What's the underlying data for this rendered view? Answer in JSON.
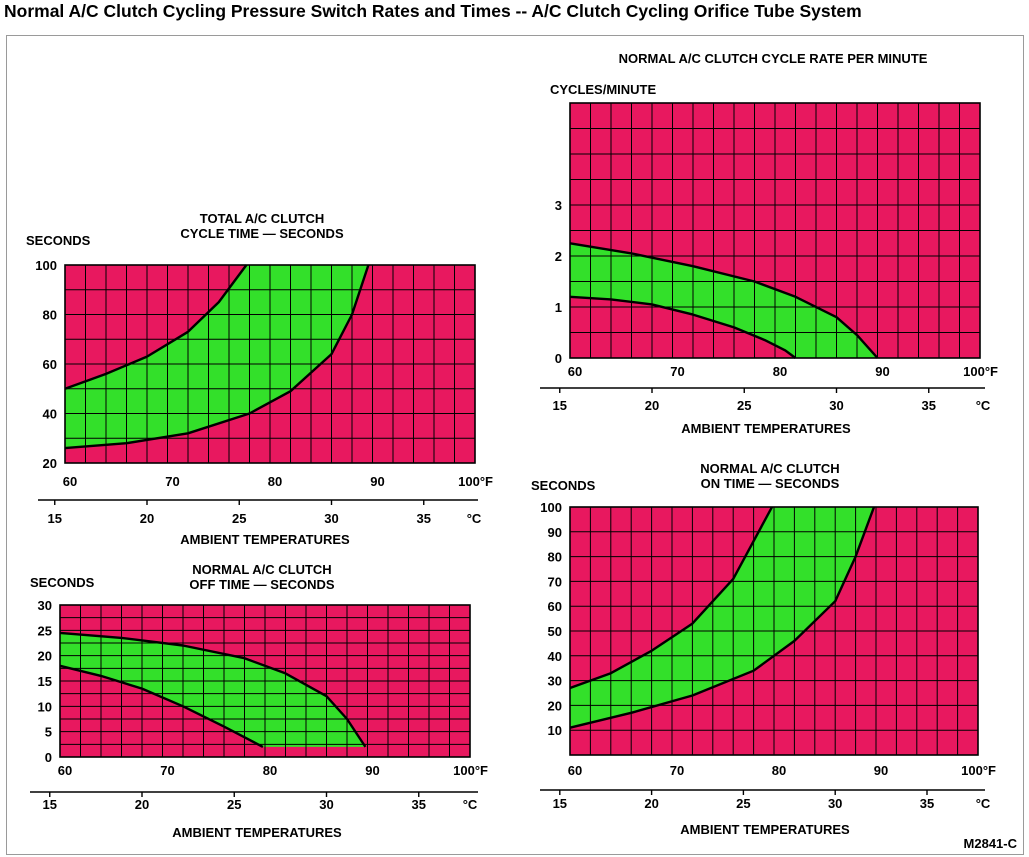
{
  "page": {
    "title": "Normal A/C Clutch Cycling Pressure Switch Rates and Times -- A/C Clutch Cycling Orifice Tube System",
    "figure_code": "M2841-C"
  },
  "colors": {
    "grid_background": "#e8185f",
    "band_fill": "#33e02a",
    "grid_line": "#000000"
  },
  "chart_data": [
    {
      "id": "total",
      "type": "area",
      "title": [
        "TOTAL A/C CLUTCH",
        "CYCLE TIME — SECONDS"
      ],
      "ylabel": "SECONDS",
      "xlabel": "AMBIENT TEMPERATURES",
      "xlim": [
        60,
        100
      ],
      "ylim": [
        20,
        100
      ],
      "xticks": [
        {
          "v": 60,
          "t": "60"
        },
        {
          "v": 70,
          "t": "70"
        },
        {
          "v": 80,
          "t": "80"
        },
        {
          "v": 90,
          "t": "90"
        },
        {
          "v": 100,
          "t": "100°F"
        }
      ],
      "yticks": [
        {
          "v": 20,
          "t": "20"
        },
        {
          "v": 40,
          "t": "40"
        },
        {
          "v": 60,
          "t": "60"
        },
        {
          "v": 80,
          "t": "80"
        },
        {
          "v": 100,
          "t": "100"
        }
      ],
      "celsius_ticks": [
        {
          "f": 59,
          "t": "15"
        },
        {
          "f": 68,
          "t": "20"
        },
        {
          "f": 77,
          "t": "25"
        },
        {
          "f": 86,
          "t": "30"
        },
        {
          "f": 95,
          "t": "35"
        }
      ],
      "celsius_unit": "°C",
      "series": [
        {
          "role": "upper",
          "x": [
            60,
            64,
            68,
            72,
            75,
            77.7
          ],
          "y": [
            50,
            56,
            63,
            73,
            85,
            100
          ]
        },
        {
          "role": "lower",
          "x": [
            60,
            66,
            72,
            78,
            82,
            86,
            88,
            89.6
          ],
          "y": [
            26,
            28,
            32,
            40,
            49,
            64,
            80,
            100
          ]
        }
      ]
    },
    {
      "id": "off",
      "type": "area",
      "title": [
        "NORMAL A/C CLUTCH",
        "OFF TIME — SECONDS"
      ],
      "ylabel": "SECONDS",
      "xlabel": "AMBIENT TEMPERATURES",
      "xlim": [
        60,
        100
      ],
      "ylim": [
        0,
        30
      ],
      "xticks": [
        {
          "v": 60,
          "t": "60"
        },
        {
          "v": 70,
          "t": "70"
        },
        {
          "v": 80,
          "t": "80"
        },
        {
          "v": 90,
          "t": "90"
        },
        {
          "v": 100,
          "t": "100°F"
        }
      ],
      "yticks": [
        {
          "v": 0,
          "t": "0"
        },
        {
          "v": 5,
          "t": "5"
        },
        {
          "v": 10,
          "t": "10"
        },
        {
          "v": 15,
          "t": "15"
        },
        {
          "v": 20,
          "t": "20"
        },
        {
          "v": 25,
          "t": "25"
        },
        {
          "v": 30,
          "t": "30"
        }
      ],
      "celsius_ticks": [
        {
          "f": 59,
          "t": "15"
        },
        {
          "f": 68,
          "t": "20"
        },
        {
          "f": 77,
          "t": "25"
        },
        {
          "f": 86,
          "t": "30"
        },
        {
          "f": 95,
          "t": "35"
        }
      ],
      "celsius_unit": "°C",
      "series": [
        {
          "role": "upper",
          "x": [
            60,
            66,
            72,
            78,
            82,
            86,
            88,
            89.8
          ],
          "y": [
            24.5,
            23.5,
            22,
            19.5,
            16.5,
            12,
            7.5,
            2
          ]
        },
        {
          "role": "lower",
          "x": [
            60,
            64,
            68,
            72,
            76,
            79.8
          ],
          "y": [
            18,
            16,
            13.5,
            10,
            6,
            2
          ]
        }
      ]
    },
    {
      "id": "rate",
      "type": "area",
      "title": [
        "NORMAL A/C CLUTCH CYCLE RATE PER MINUTE"
      ],
      "ylabel": "CYCLES/MINUTE",
      "xlabel": "AMBIENT TEMPERATURES",
      "xlim": [
        60,
        100
      ],
      "ylim": [
        0,
        5
      ],
      "xticks": [
        {
          "v": 60,
          "t": "60"
        },
        {
          "v": 70,
          "t": "70"
        },
        {
          "v": 80,
          "t": "80"
        },
        {
          "v": 90,
          "t": "90"
        },
        {
          "v": 100,
          "t": "100°F"
        }
      ],
      "yticks": [
        {
          "v": 0,
          "t": "0"
        },
        {
          "v": 1,
          "t": "1"
        },
        {
          "v": 2,
          "t": "2"
        },
        {
          "v": 3,
          "t": "3"
        }
      ],
      "celsius_ticks": [
        {
          "f": 59,
          "t": "15"
        },
        {
          "f": 68,
          "t": "20"
        },
        {
          "f": 77,
          "t": "25"
        },
        {
          "f": 86,
          "t": "30"
        },
        {
          "f": 95,
          "t": "35"
        }
      ],
      "celsius_unit": "°C",
      "series": [
        {
          "role": "upper",
          "x": [
            60,
            66,
            72,
            78,
            82,
            86,
            88,
            90
          ],
          "y": [
            2.25,
            2.05,
            1.8,
            1.5,
            1.2,
            0.8,
            0.45,
            0
          ]
        },
        {
          "role": "lower",
          "x": [
            60,
            64,
            68,
            72,
            76,
            79,
            81,
            82
          ],
          "y": [
            1.2,
            1.15,
            1.05,
            0.85,
            0.6,
            0.35,
            0.15,
            0
          ]
        }
      ]
    },
    {
      "id": "on",
      "type": "area",
      "title": [
        "NORMAL A/C CLUTCH",
        "ON TIME — SECONDS"
      ],
      "ylabel": "SECONDS",
      "xlabel": "AMBIENT TEMPERATURES",
      "xlim": [
        60,
        100
      ],
      "ylim": [
        0,
        100
      ],
      "xticks": [
        {
          "v": 60,
          "t": "60"
        },
        {
          "v": 70,
          "t": "70"
        },
        {
          "v": 80,
          "t": "80"
        },
        {
          "v": 90,
          "t": "90"
        },
        {
          "v": 100,
          "t": "100°F"
        }
      ],
      "yticks": [
        {
          "v": 10,
          "t": "10"
        },
        {
          "v": 20,
          "t": "20"
        },
        {
          "v": 30,
          "t": "30"
        },
        {
          "v": 40,
          "t": "40"
        },
        {
          "v": 50,
          "t": "50"
        },
        {
          "v": 60,
          "t": "60"
        },
        {
          "v": 70,
          "t": "70"
        },
        {
          "v": 80,
          "t": "80"
        },
        {
          "v": 90,
          "t": "90"
        },
        {
          "v": 100,
          "t": "100"
        }
      ],
      "celsius_ticks": [
        {
          "f": 59,
          "t": "15"
        },
        {
          "f": 68,
          "t": "20"
        },
        {
          "f": 77,
          "t": "25"
        },
        {
          "f": 86,
          "t": "30"
        },
        {
          "f": 95,
          "t": "35"
        }
      ],
      "celsius_unit": "°C",
      "series": [
        {
          "role": "upper",
          "x": [
            60,
            64,
            68,
            72,
            76,
            79.8
          ],
          "y": [
            27,
            33,
            42,
            53,
            71,
            100
          ]
        },
        {
          "role": "lower",
          "x": [
            60,
            66,
            72,
            78,
            82,
            86,
            88,
            89.8
          ],
          "y": [
            11,
            17,
            24,
            34,
            46,
            62,
            80,
            100
          ]
        }
      ]
    }
  ]
}
